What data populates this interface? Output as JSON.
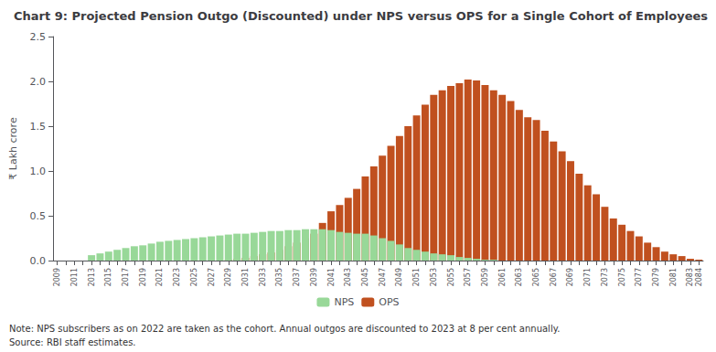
{
  "chart_data": {
    "type": "bar",
    "title": "Chart 9: Projected Pension Outgo (Discounted) under NPS versus OPS for a Single Cohort of Employees",
    "ylabel": "₹ Lakh crore",
    "annotations": [
      "Note: NPS subscribers as on 2022 are taken as the cohort. Annual outgos are discounted to 2023 at 8 per cent annually.",
      "Source: RBI staff estimates."
    ],
    "categories": [
      "2009",
      null,
      "2011",
      null,
      "2013",
      null,
      "2015",
      null,
      "2017",
      null,
      "2019",
      null,
      "2021",
      null,
      "2023",
      null,
      "2025",
      null,
      "2027",
      null,
      "2029",
      null,
      "2031",
      null,
      "2033",
      null,
      "2035",
      null,
      "2037",
      null,
      "2039",
      null,
      "2041",
      null,
      "2043",
      null,
      "2045",
      null,
      "2047",
      null,
      "2049",
      null,
      "2051",
      null,
      "2053",
      null,
      "2055",
      null,
      "2057",
      null,
      "2059",
      null,
      "2061",
      null,
      "2063",
      null,
      "2065",
      null,
      "2067",
      null,
      "2069",
      null,
      "2071",
      null,
      "2073",
      null,
      "2075",
      null,
      "2077",
      null,
      "2079",
      null,
      "2081",
      null,
      "2083",
      "2084"
    ],
    "series": [
      {
        "name": "NPS",
        "color": "#98D898",
        "values": [
          0.0,
          0.0,
          0.0,
          0.0,
          0.06,
          0.08,
          0.1,
          0.12,
          0.14,
          0.16,
          0.17,
          0.19,
          0.21,
          0.22,
          0.23,
          0.24,
          0.25,
          0.26,
          0.27,
          0.28,
          0.29,
          0.3,
          0.3,
          0.31,
          0.32,
          0.33,
          0.33,
          0.34,
          0.34,
          0.35,
          0.35,
          0.35,
          0.34,
          0.32,
          0.31,
          0.3,
          0.3,
          0.28,
          0.25,
          0.22,
          0.18,
          0.14,
          0.12,
          0.1,
          0.08,
          0.07,
          0.06,
          0.04,
          0.03,
          0.02,
          0.01,
          0.01,
          0.0,
          0.0,
          0.0,
          0.0,
          0.0,
          0.0,
          0.0,
          0.0,
          0.0,
          0.0,
          0.0,
          0.0,
          0.0,
          0.0,
          0.0,
          0.0,
          0.0,
          0.0,
          0.0,
          0.0,
          0.0,
          0.0,
          0.0,
          0.0
        ]
      },
      {
        "name": "OPS",
        "color": "#C0501F",
        "values": [
          0.0,
          0.0,
          0.0,
          0.0,
          0.0,
          0.0,
          0.0,
          0.0,
          0.0,
          0.0,
          0.0,
          0.0,
          0.0,
          0.0,
          0.0,
          0.0,
          0.0,
          0.0,
          0.0,
          0.0,
          0.01,
          0.02,
          0.03,
          0.05,
          0.07,
          0.09,
          0.12,
          0.16,
          0.2,
          0.25,
          0.3,
          0.42,
          0.55,
          0.62,
          0.7,
          0.8,
          0.94,
          1.05,
          1.17,
          1.28,
          1.39,
          1.5,
          1.62,
          1.74,
          1.85,
          1.9,
          1.95,
          1.98,
          2.02,
          2.01,
          1.96,
          1.9,
          1.85,
          1.78,
          1.68,
          1.6,
          1.57,
          1.45,
          1.33,
          1.22,
          1.11,
          0.97,
          0.84,
          0.74,
          0.6,
          0.47,
          0.4,
          0.33,
          0.27,
          0.2,
          0.15,
          0.1,
          0.07,
          0.05,
          0.02,
          0.01
        ]
      }
    ],
    "ylim": [
      0,
      2.5
    ],
    "yticks": [
      {
        "value": 0,
        "label": "0.0"
      },
      0.5,
      {
        "value": 1,
        "label": "1.0"
      },
      1.5,
      {
        "value": 2,
        "label": "2.0"
      },
      2.5
    ],
    "grid": false,
    "legend": "bottom"
  }
}
